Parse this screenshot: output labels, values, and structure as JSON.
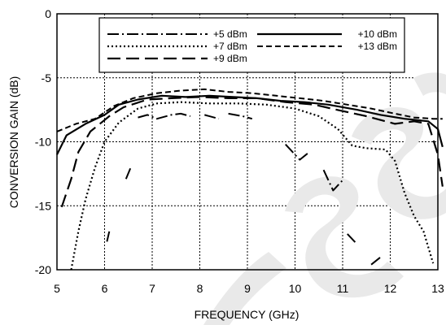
{
  "chart_data": {
    "type": "line",
    "xlabel": "FREQUENCY (GHz)",
    "ylabel": "CONVERSION GAIN (dB)",
    "xlim": [
      5,
      13
    ],
    "ylim": [
      -20,
      0
    ],
    "x_ticks": [
      5,
      6,
      7,
      8,
      9,
      10,
      11,
      12,
      13
    ],
    "y_ticks": [
      0,
      -5,
      -10,
      -15,
      -20
    ],
    "grid": true,
    "legend_position": "top",
    "watermark": "OBSOLETE",
    "series": [
      {
        "name": "+5 dBm",
        "style": "dash-dot",
        "segments": [
          [
            [
              6.05,
              -17.8
            ],
            [
              6.1,
              -17.0
            ]
          ],
          [
            [
              6.45,
              -12.9
            ],
            [
              6.55,
              -12.0
            ]
          ],
          [
            [
              6.7,
              -8.1
            ],
            [
              6.9,
              -7.9
            ],
            [
              7.1,
              -8.2
            ],
            [
              7.4,
              -7.9
            ],
            [
              7.6,
              -7.8
            ],
            [
              7.8,
              -8.0
            ]
          ],
          [
            [
              8.1,
              -7.9
            ],
            [
              8.4,
              -8.2
            ]
          ],
          [
            [
              8.6,
              -7.8
            ],
            [
              8.9,
              -8.0
            ],
            [
              9.1,
              -8.2
            ]
          ],
          [
            [
              9.8,
              -10.2
            ],
            [
              10.1,
              -11.4
            ],
            [
              10.3,
              -10.8
            ]
          ],
          [
            [
              10.6,
              -12.2
            ],
            [
              10.8,
              -13.8
            ],
            [
              11.0,
              -13.0
            ]
          ],
          [
            [
              11.1,
              -17.2
            ],
            [
              11.3,
              -18.0
            ]
          ],
          [
            [
              11.6,
              -19.6
            ],
            [
              11.8,
              -19.0
            ]
          ]
        ]
      },
      {
        "name": "+7 dBm",
        "style": "dotted",
        "segments": [
          [
            [
              5.3,
              -20.0
            ],
            [
              5.45,
              -17.0
            ],
            [
              5.6,
              -14.5
            ],
            [
              5.8,
              -12.0
            ],
            [
              6.0,
              -10.0
            ],
            [
              6.3,
              -8.5
            ],
            [
              6.7,
              -7.4
            ],
            [
              7.1,
              -7.0
            ],
            [
              7.6,
              -6.9
            ],
            [
              8.2,
              -7.0
            ],
            [
              8.8,
              -7.0
            ],
            [
              9.4,
              -7.1
            ],
            [
              10.0,
              -7.4
            ],
            [
              10.5,
              -8.0
            ],
            [
              10.9,
              -9.0
            ],
            [
              11.2,
              -10.3
            ],
            [
              11.5,
              -10.5
            ],
            [
              11.9,
              -10.6
            ],
            [
              12.1,
              -11.5
            ],
            [
              12.3,
              -14.0
            ],
            [
              12.5,
              -15.8
            ],
            [
              12.7,
              -17.0
            ],
            [
              12.9,
              -19.5
            ]
          ]
        ]
      },
      {
        "name": "+9 dBm",
        "style": "long-dash",
        "segments": [
          [
            [
              5.1,
              -15.1
            ],
            [
              5.3,
              -12.9
            ],
            [
              5.45,
              -10.8
            ],
            [
              5.7,
              -9.2
            ],
            [
              6.1,
              -8.0
            ],
            [
              6.4,
              -7.3
            ],
            [
              6.9,
              -6.7
            ],
            [
              7.4,
              -6.6
            ],
            [
              8.0,
              -6.5
            ],
            [
              8.6,
              -6.6
            ],
            [
              9.2,
              -6.6
            ],
            [
              9.8,
              -6.9
            ],
            [
              10.4,
              -7.1
            ],
            [
              11.0,
              -7.6
            ],
            [
              11.5,
              -8.0
            ],
            [
              12.1,
              -8.6
            ],
            [
              12.5,
              -8.4
            ],
            [
              12.8,
              -8.6
            ],
            [
              13.0,
              -11.0
            ],
            [
              13.1,
              -13.5
            ]
          ]
        ]
      },
      {
        "name": "+10 dBm",
        "style": "solid",
        "segments": [
          [
            [
              5.0,
              -11.0
            ],
            [
              5.2,
              -9.5
            ],
            [
              5.6,
              -8.6
            ],
            [
              6.0,
              -7.9
            ],
            [
              6.3,
              -7.1
            ],
            [
              6.7,
              -6.7
            ],
            [
              7.2,
              -6.4
            ],
            [
              7.7,
              -6.5
            ],
            [
              8.2,
              -6.4
            ],
            [
              8.7,
              -6.5
            ],
            [
              9.2,
              -6.6
            ],
            [
              9.7,
              -6.8
            ],
            [
              10.2,
              -6.9
            ],
            [
              10.7,
              -7.1
            ],
            [
              11.3,
              -7.5
            ],
            [
              11.8,
              -7.9
            ],
            [
              12.3,
              -8.2
            ],
            [
              12.8,
              -8.4
            ],
            [
              13.0,
              -9.0
            ],
            [
              13.1,
              -10.4
            ]
          ]
        ]
      },
      {
        "name": "+13 dBm",
        "style": "dashed",
        "segments": [
          [
            [
              5.0,
              -9.2
            ],
            [
              5.4,
              -8.6
            ],
            [
              5.8,
              -8.2
            ],
            [
              6.2,
              -7.2
            ],
            [
              6.6,
              -6.6
            ],
            [
              7.1,
              -6.2
            ],
            [
              7.6,
              -6.0
            ],
            [
              8.1,
              -5.9
            ],
            [
              8.6,
              -6.1
            ],
            [
              9.1,
              -6.2
            ],
            [
              9.6,
              -6.4
            ],
            [
              10.1,
              -6.6
            ],
            [
              10.6,
              -6.8
            ],
            [
              11.1,
              -7.1
            ],
            [
              11.6,
              -7.4
            ],
            [
              12.1,
              -7.8
            ],
            [
              12.5,
              -8.1
            ],
            [
              12.9,
              -8.2
            ],
            [
              13.1,
              -8.2
            ]
          ]
        ]
      }
    ]
  }
}
